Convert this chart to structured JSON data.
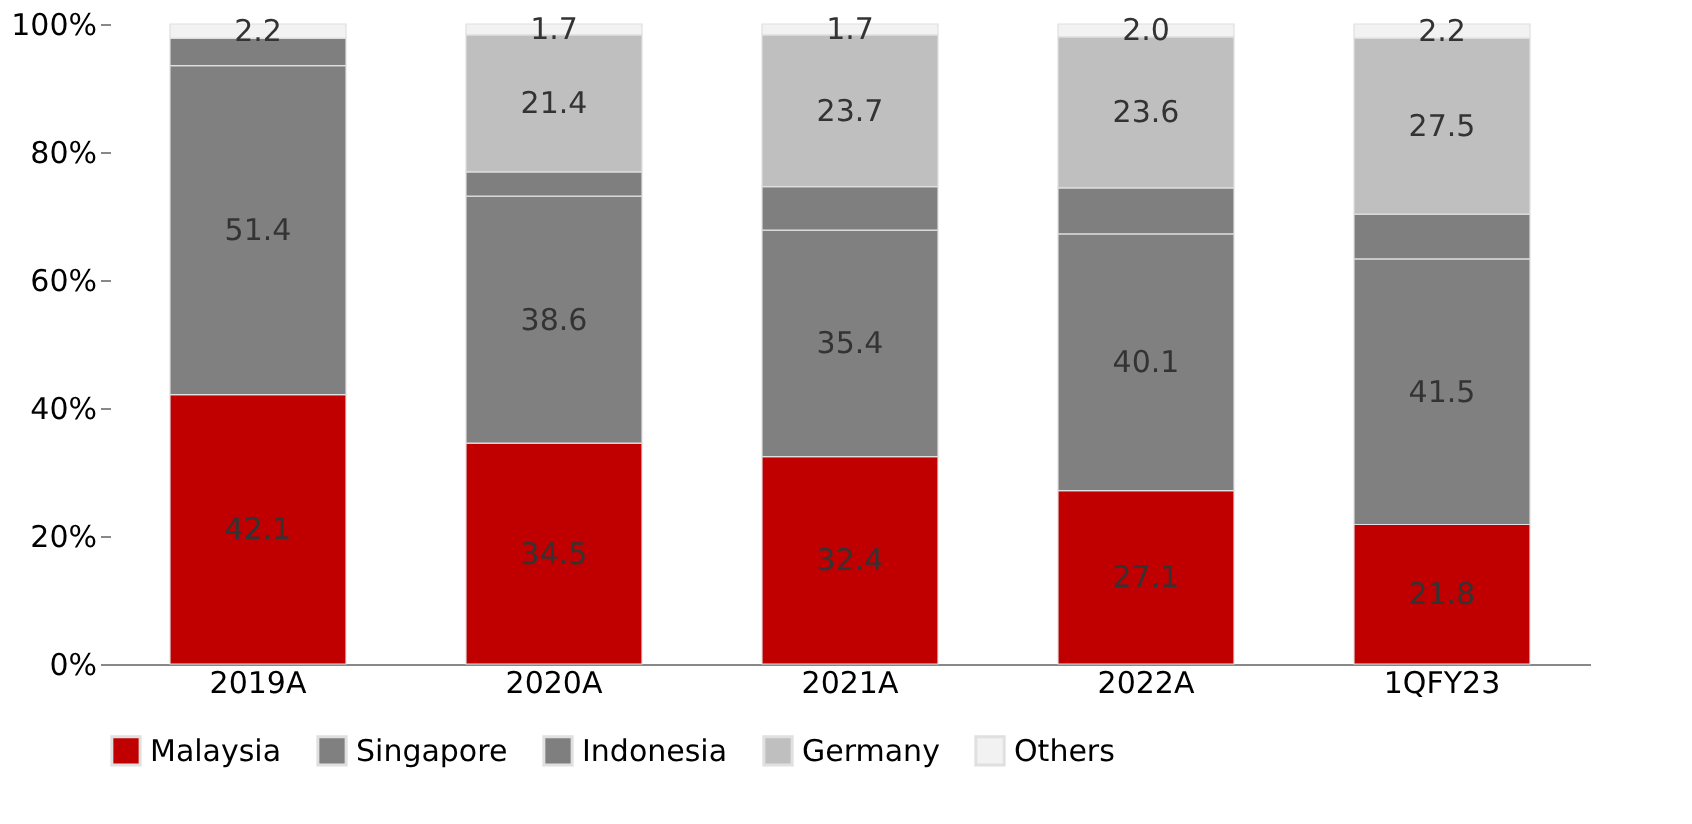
{
  "chart_data": {
    "type": "bar",
    "stacked": true,
    "categories": [
      "2019A",
      "2020A",
      "2021A",
      "2022A",
      "1QFY23"
    ],
    "series": [
      {
        "name": "Malaysia",
        "color": "#c00000",
        "values": [
          42.1,
          34.5,
          32.4,
          27.1,
          21.8
        ],
        "value_labels": [
          "42.1",
          "34.5",
          "32.4",
          "27.1",
          "21.8"
        ]
      },
      {
        "name": "Singapore",
        "color": "#808080",
        "values": [
          51.4,
          38.6,
          35.4,
          40.1,
          41.5
        ],
        "value_labels": [
          "51.4",
          "38.6",
          "35.4",
          "40.1",
          "41.5"
        ]
      },
      {
        "name": "Indonesia",
        "color": "#7f7f7f",
        "values": [
          4.3,
          3.8,
          6.8,
          7.2,
          7.0
        ],
        "value_labels": [
          null,
          null,
          null,
          null,
          null
        ]
      },
      {
        "name": "Germany",
        "color": "#bfbfbf",
        "values": [
          0,
          21.4,
          23.7,
          23.6,
          27.5
        ],
        "value_labels": [
          null,
          "21.4",
          "23.7",
          "23.6",
          "27.5"
        ]
      },
      {
        "name": "Others",
        "color": "#f2f2f2",
        "values": [
          2.2,
          1.7,
          1.7,
          2.0,
          2.2
        ],
        "value_labels": [
          "2.2",
          "1.7",
          "1.7",
          "2.0",
          "2.2"
        ]
      }
    ],
    "ylim": [
      0,
      100
    ],
    "yticks": [
      {
        "value": 0,
        "label": "0%"
      },
      {
        "value": 20,
        "label": "20%"
      },
      {
        "value": 40,
        "label": "40%"
      },
      {
        "value": 60,
        "label": "60%"
      },
      {
        "value": 80,
        "label": "80%"
      },
      {
        "value": 100,
        "label": "100%"
      }
    ],
    "grid": false,
    "legend": "bottom"
  }
}
